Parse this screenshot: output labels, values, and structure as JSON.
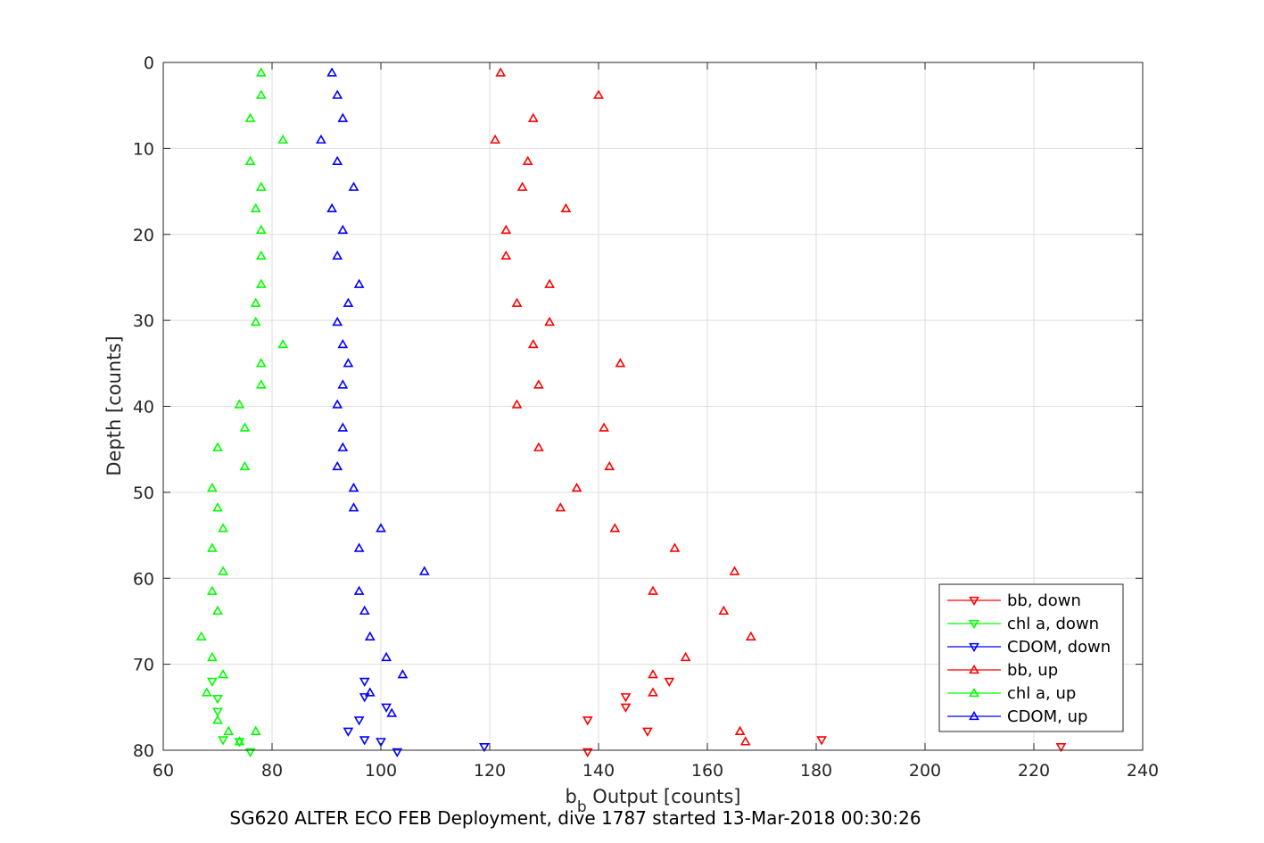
{
  "chart_data": {
    "type": "scatter",
    "title": "",
    "xlabel_main": "b",
    "xlabel_sub": "b",
    "xlabel_rest": " Output [counts]",
    "ylabel": "Depth [counts]",
    "caption": "SG620 ALTER ECO FEB Deployment, dive 1787 started 13-Mar-2018 00:30:26",
    "xlim": [
      60,
      240
    ],
    "ylim": [
      0,
      80
    ],
    "y_reversed": true,
    "xticks": [
      "60",
      "80",
      "100",
      "120",
      "140",
      "160",
      "180",
      "200",
      "220",
      "240"
    ],
    "yticks": [
      "0",
      "10",
      "20",
      "30",
      "40",
      "50",
      "60",
      "70",
      "80"
    ],
    "grid": true,
    "legend_position": "lower-right",
    "series": [
      {
        "name": "bb, down",
        "color": "#ff0000",
        "marker": "triangle-down",
        "points": [
          [
            138,
            76.5
          ],
          [
            145,
            73.8
          ],
          [
            145,
            75
          ],
          [
            149,
            77.8
          ],
          [
            153,
            72
          ],
          [
            181,
            78.8
          ],
          [
            138,
            80.2
          ],
          [
            225,
            79.6
          ]
        ]
      },
      {
        "name": "chl a, down",
        "color": "#00ff00",
        "marker": "triangle-down",
        "points": [
          [
            69,
            72
          ],
          [
            70,
            75.5
          ],
          [
            71,
            78.8
          ],
          [
            74,
            79
          ],
          [
            76,
            80.2
          ],
          [
            70,
            74
          ]
        ]
      },
      {
        "name": "CDOM, down",
        "color": "#0000ff",
        "marker": "triangle-down",
        "points": [
          [
            97,
            72
          ],
          [
            97,
            73.8
          ],
          [
            101,
            75
          ],
          [
            96,
            76.5
          ],
          [
            94,
            77.8
          ],
          [
            97,
            78.8
          ],
          [
            100,
            79
          ],
          [
            103,
            80.2
          ],
          [
            119,
            79.6
          ]
        ]
      },
      {
        "name": "bb, up",
        "color": "#ff0000",
        "marker": "triangle-up",
        "points": [
          [
            122,
            1.2
          ],
          [
            140,
            3.8
          ],
          [
            128,
            6.5
          ],
          [
            121,
            9
          ],
          [
            127,
            11.5
          ],
          [
            126,
            14.5
          ],
          [
            134,
            17
          ],
          [
            123,
            19.5
          ],
          [
            123,
            22.5
          ],
          [
            131,
            25.8
          ],
          [
            125,
            28
          ],
          [
            131,
            30.2
          ],
          [
            128,
            32.8
          ],
          [
            144,
            35
          ],
          [
            129,
            37.5
          ],
          [
            125,
            39.8
          ],
          [
            141,
            42.5
          ],
          [
            129,
            44.8
          ],
          [
            142,
            47
          ],
          [
            136,
            49.5
          ],
          [
            133,
            51.8
          ],
          [
            143,
            54.2
          ],
          [
            154,
            56.5
          ],
          [
            165,
            59.2
          ],
          [
            150,
            61.5
          ],
          [
            163,
            63.8
          ],
          [
            168,
            66.8
          ],
          [
            156,
            69.2
          ],
          [
            150,
            71.2
          ],
          [
            150,
            73.3
          ],
          [
            166,
            77.8
          ],
          [
            167,
            79
          ]
        ]
      },
      {
        "name": "chl a, up",
        "color": "#00ff00",
        "marker": "triangle-up",
        "points": [
          [
            78,
            1.2
          ],
          [
            78,
            3.8
          ],
          [
            76,
            6.5
          ],
          [
            82,
            9
          ],
          [
            76,
            11.5
          ],
          [
            78,
            14.5
          ],
          [
            77,
            17
          ],
          [
            78,
            19.5
          ],
          [
            78,
            22.5
          ],
          [
            78,
            25.8
          ],
          [
            77,
            28
          ],
          [
            77,
            30.2
          ],
          [
            82,
            32.8
          ],
          [
            78,
            35
          ],
          [
            78,
            37.5
          ],
          [
            74,
            39.8
          ],
          [
            75,
            42.5
          ],
          [
            70,
            44.8
          ],
          [
            75,
            47
          ],
          [
            69,
            49.5
          ],
          [
            70,
            51.8
          ],
          [
            71,
            54.2
          ],
          [
            69,
            56.5
          ],
          [
            71,
            59.2
          ],
          [
            69,
            61.5
          ],
          [
            70,
            63.8
          ],
          [
            67,
            66.8
          ],
          [
            69,
            69.2
          ],
          [
            71,
            71.2
          ],
          [
            68,
            73.3
          ],
          [
            70,
            76.5
          ],
          [
            72,
            77.8
          ],
          [
            77,
            77.8
          ],
          [
            74,
            79
          ]
        ]
      },
      {
        "name": "CDOM, up",
        "color": "#0000ff",
        "marker": "triangle-up",
        "points": [
          [
            91,
            1.2
          ],
          [
            92,
            3.8
          ],
          [
            93,
            6.5
          ],
          [
            89,
            9
          ],
          [
            92,
            11.5
          ],
          [
            95,
            14.5
          ],
          [
            91,
            17
          ],
          [
            93,
            19.5
          ],
          [
            92,
            22.5
          ],
          [
            96,
            25.8
          ],
          [
            94,
            28
          ],
          [
            92,
            30.2
          ],
          [
            93,
            32.8
          ],
          [
            94,
            35
          ],
          [
            93,
            37.5
          ],
          [
            92,
            39.8
          ],
          [
            93,
            42.5
          ],
          [
            93,
            44.8
          ],
          [
            92,
            47
          ],
          [
            95,
            49.5
          ],
          [
            95,
            51.8
          ],
          [
            100,
            54.2
          ],
          [
            96,
            56.5
          ],
          [
            108,
            59.2
          ],
          [
            96,
            61.5
          ],
          [
            97,
            63.8
          ],
          [
            98,
            66.8
          ],
          [
            101,
            69.2
          ],
          [
            104,
            71.2
          ],
          [
            98,
            73.3
          ],
          [
            102,
            75.7
          ]
        ]
      }
    ]
  }
}
